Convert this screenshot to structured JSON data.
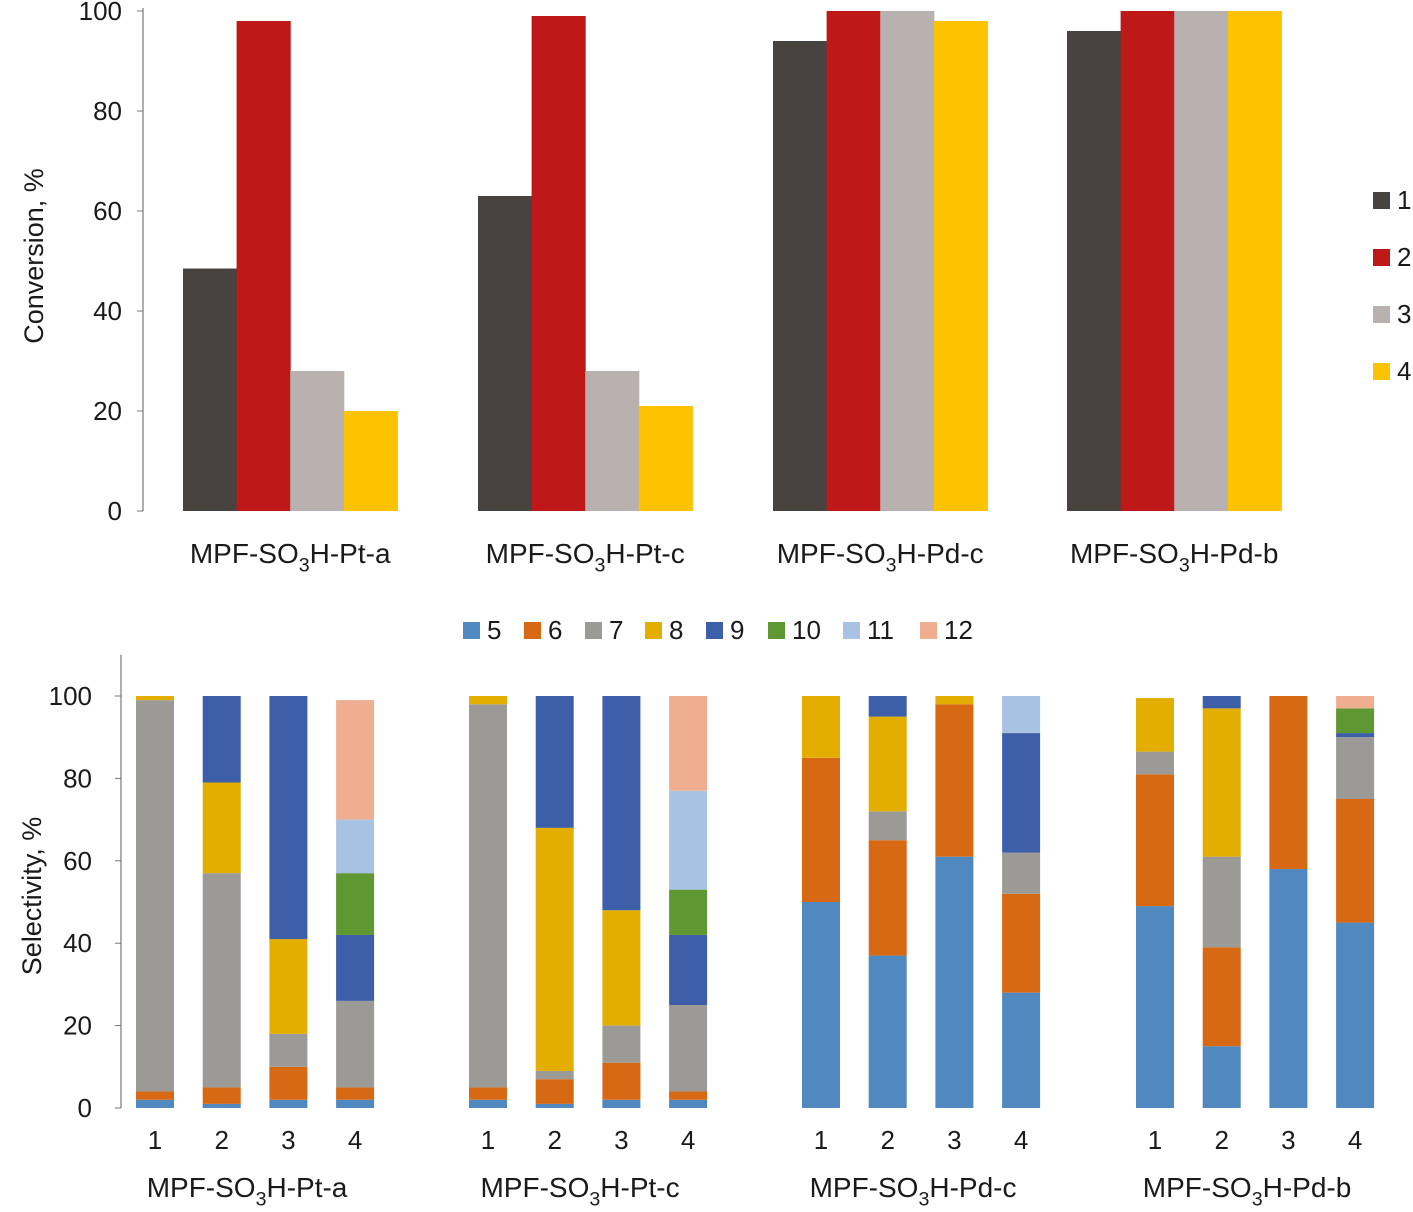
{
  "chart_data": [
    {
      "type": "bar",
      "ylabel": "Conversion, %",
      "ylim": [
        0,
        100
      ],
      "yticks": [
        0,
        20,
        40,
        60,
        80,
        100
      ],
      "grid": false,
      "legend_position": "right",
      "categories": [
        "MPF-SO3H-Pt-a",
        "MPF-SO3H-Pt-c",
        "MPF-SO3H-Pd-c",
        "MPF-SO3H-Pd-b"
      ],
      "series": [
        {
          "name": "1",
          "color": "#484340",
          "values": [
            48.5,
            63,
            94,
            96
          ]
        },
        {
          "name": "2",
          "color": "#be1818",
          "values": [
            98,
            99,
            100,
            100
          ]
        },
        {
          "name": "3",
          "color": "#b9b1b0",
          "values": [
            28,
            28,
            100,
            100
          ]
        },
        {
          "name": "4",
          "color": "#fdc300",
          "values": [
            20,
            21,
            98,
            100
          ]
        }
      ]
    },
    {
      "type": "bar",
      "stacked": true,
      "ylabel": "Selectivity,  %",
      "ylim": [
        0,
        110
      ],
      "yticks": [
        0,
        20,
        40,
        60,
        80,
        100
      ],
      "grid": false,
      "legend_position": "top",
      "groups": [
        "MPF-SO3H-Pt-a",
        "MPF-SO3H-Pt-c",
        "MPF-SO3H-Pd-c",
        "MPF-SO3H-Pd-b"
      ],
      "categories": [
        "1",
        "2",
        "3",
        "4"
      ],
      "series": [
        {
          "name": "5",
          "color": "#4f89c0",
          "values": [
            [
              2,
              1,
              2,
              2
            ],
            [
              2,
              1,
              2,
              2
            ],
            [
              50,
              37,
              61,
              28
            ],
            [
              49,
              15,
              58,
              45
            ]
          ]
        },
        {
          "name": "6",
          "color": "#d76814",
          "values": [
            [
              2,
              4,
              8,
              3
            ],
            [
              3,
              6,
              9,
              2
            ],
            [
              35,
              28,
              37,
              24
            ],
            [
              32,
              24,
              42,
              30
            ]
          ]
        },
        {
          "name": "7",
          "color": "#9c9a97",
          "values": [
            [
              95,
              52,
              8,
              21
            ],
            [
              93,
              2,
              9,
              21
            ],
            [
              0,
              7,
              0,
              10
            ],
            [
              5.5,
              22,
              0,
              15
            ]
          ]
        },
        {
          "name": "8",
          "color": "#e3ae00",
          "values": [
            [
              1,
              22,
              23,
              0
            ],
            [
              2,
              59,
              28,
              0
            ],
            [
              15,
              23,
              2,
              0
            ],
            [
              13,
              36,
              0,
              0
            ]
          ]
        },
        {
          "name": "9",
          "color": "#3d5ea8",
          "values": [
            [
              0,
              21,
              59,
              16
            ],
            [
              0,
              32,
              52,
              17
            ],
            [
              0,
              5,
              0,
              29
            ],
            [
              0,
              3,
              0,
              1
            ]
          ]
        },
        {
          "name": "10",
          "color": "#5f9732",
          "values": [
            [
              0,
              0,
              0,
              15
            ],
            [
              0,
              0,
              0,
              11
            ],
            [
              0,
              0,
              0,
              0
            ],
            [
              0,
              0,
              0,
              6
            ]
          ]
        },
        {
          "name": "11",
          "color": "#a8c2e3",
          "values": [
            [
              0,
              0,
              0,
              13
            ],
            [
              0,
              0,
              0,
              24
            ],
            [
              0,
              0,
              0,
              9
            ],
            [
              0,
              0,
              0,
              0
            ]
          ]
        },
        {
          "name": "12",
          "color": "#f0ae90",
          "values": [
            [
              0,
              0,
              0,
              29
            ],
            [
              0,
              0,
              0,
              23
            ],
            [
              0,
              0,
              0,
              0
            ],
            [
              0,
              0,
              0,
              3
            ]
          ]
        }
      ]
    }
  ]
}
